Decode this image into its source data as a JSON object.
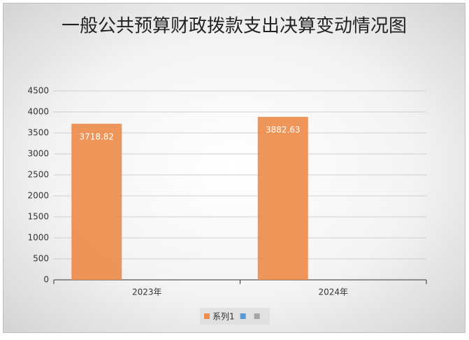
{
  "chart_data": {
    "type": "bar",
    "title": "一般公共预算财政拨款支出决算变动情况图",
    "categories": [
      "2023年",
      "2024年"
    ],
    "series": [
      {
        "name": "系列1",
        "color": "#ed8d4c",
        "values": [
          3718.82,
          3882.63
        ]
      },
      {
        "color": "#5b9bd5",
        "values": [
          null,
          null
        ]
      },
      {
        "color": "#a5a5a5",
        "values": [
          null,
          null
        ]
      }
    ],
    "ylim": [
      0,
      4500
    ],
    "yticks": [
      0,
      500,
      1000,
      1500,
      2000,
      2500,
      3000,
      3500,
      4000,
      4500
    ],
    "grid": true,
    "legend": "bottom"
  }
}
